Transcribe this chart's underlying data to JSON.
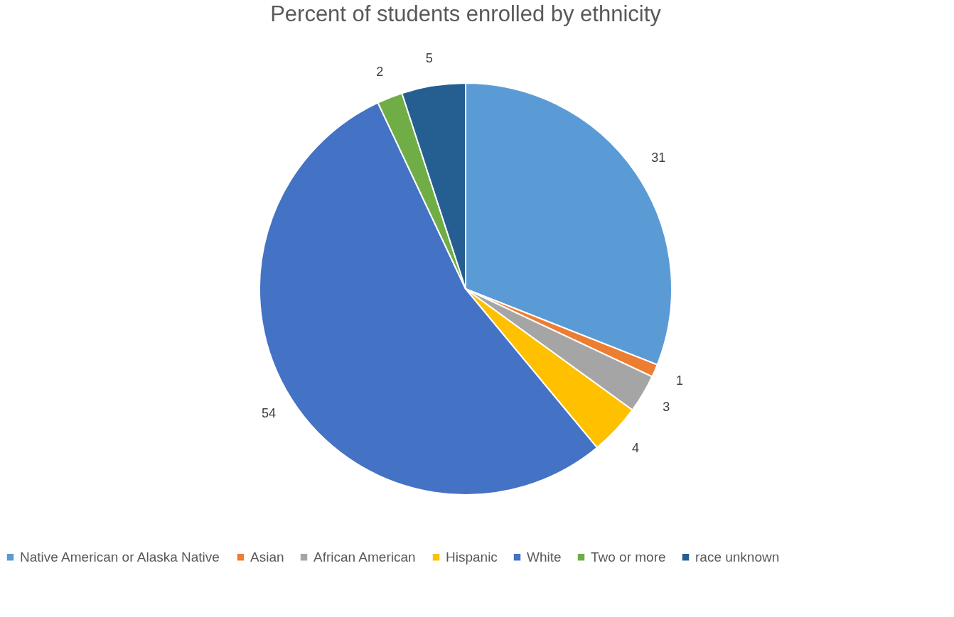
{
  "chart_data": {
    "type": "pie",
    "title": "Percent of students enrolled by ethnicity",
    "categories": [
      "Native American or Alaska Native",
      "Asian",
      "African American",
      "Hispanic",
      "White",
      "Two or more",
      "race unknown"
    ],
    "values": [
      31,
      1,
      3,
      4,
      54,
      2,
      5
    ],
    "colors": [
      "#5b9bd5",
      "#ed7d31",
      "#a5a5a5",
      "#ffc000",
      "#4472c4",
      "#70ad47",
      "#255e91"
    ],
    "data_labels": true,
    "legend": "bottom"
  }
}
